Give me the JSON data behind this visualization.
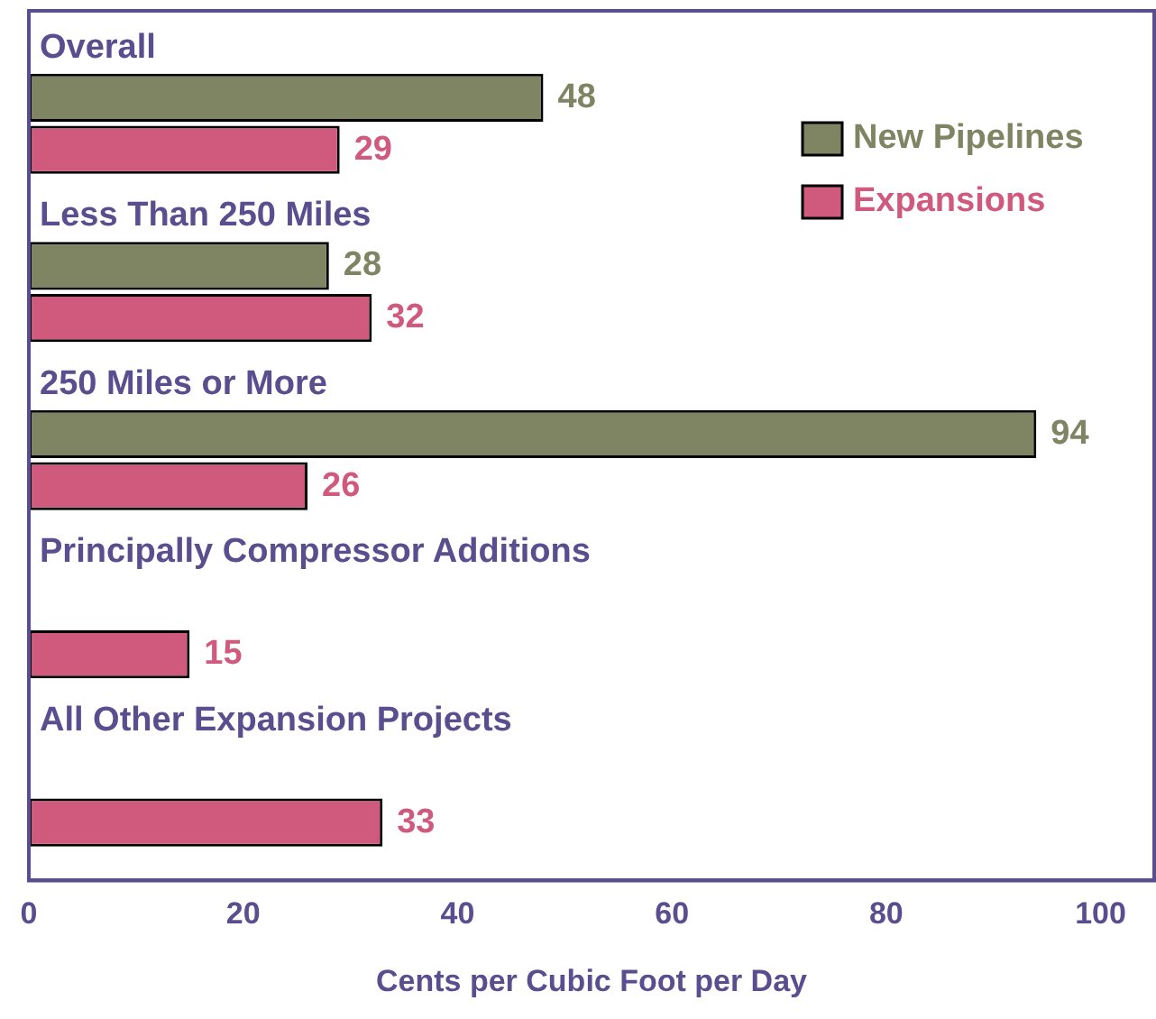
{
  "chart_data": {
    "type": "bar",
    "orientation": "horizontal",
    "xlabel": "Cents per Cubic Foot per Day",
    "categories": [
      "Overall",
      "Less Than 250 Miles",
      "250 Miles or More",
      "Principally Compressor Additions",
      "All Other Expansion Projects"
    ],
    "series": [
      {
        "name": "New Pipelines",
        "color": "#7f8563",
        "values": [
          48,
          28,
          94,
          null,
          null
        ]
      },
      {
        "name": "Expansions",
        "color": "#d05a7e",
        "values": [
          29,
          32,
          26,
          15,
          33
        ]
      }
    ],
    "xlim": [
      0,
      105
    ],
    "xticks": [
      0,
      20,
      40,
      60,
      80,
      100
    ],
    "data_labels": true,
    "legend": "top right",
    "grid": false
  }
}
